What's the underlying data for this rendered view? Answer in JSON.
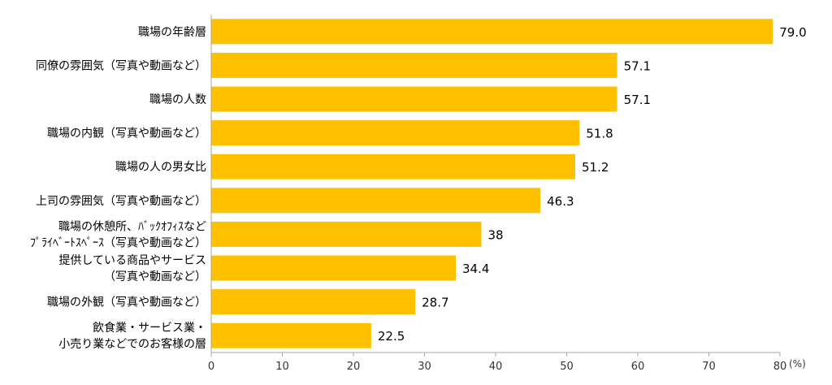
{
  "chart_data": {
    "type": "bar",
    "orientation": "horizontal",
    "categories": [
      [
        "職場の年齢層"
      ],
      [
        "同僚の雰囲気（写真や動画など）"
      ],
      [
        "職場の人数"
      ],
      [
        "職場の内観（写真や動画など）"
      ],
      [
        "職場の人の男女比"
      ],
      [
        "上司の雰囲気（写真や動画など）"
      ],
      [
        "職場の休憩所、ﾊﾞｯｸｵﾌｨｽなど",
        "ﾌﾟﾗｲﾍﾞｰﾄｽﾍﾟｰｽ（写真や動画など）"
      ],
      [
        "提供している商品やサービス",
        "（写真や動画など）"
      ],
      [
        "職場の外観（写真や動画など）"
      ],
      [
        "飲食業・サービス業・",
        "小売り業などでのお客様の層"
      ]
    ],
    "values": [
      79.0,
      57.1,
      57.1,
      51.8,
      51.2,
      46.3,
      38,
      34.4,
      28.7,
      22.5
    ],
    "value_labels": [
      "79.0",
      "57.1",
      "57.1",
      "51.8",
      "51.2",
      "46.3",
      "38",
      "34.4",
      "28.7",
      "22.5"
    ],
    "xlim": [
      0,
      80
    ],
    "xticks": [
      0,
      10,
      20,
      30,
      40,
      50,
      60,
      70,
      80
    ],
    "x_unit": "(%)",
    "bar_color": "#FFC000",
    "axis_color": "#A6A6A6",
    "grid": false,
    "legend": "none"
  }
}
